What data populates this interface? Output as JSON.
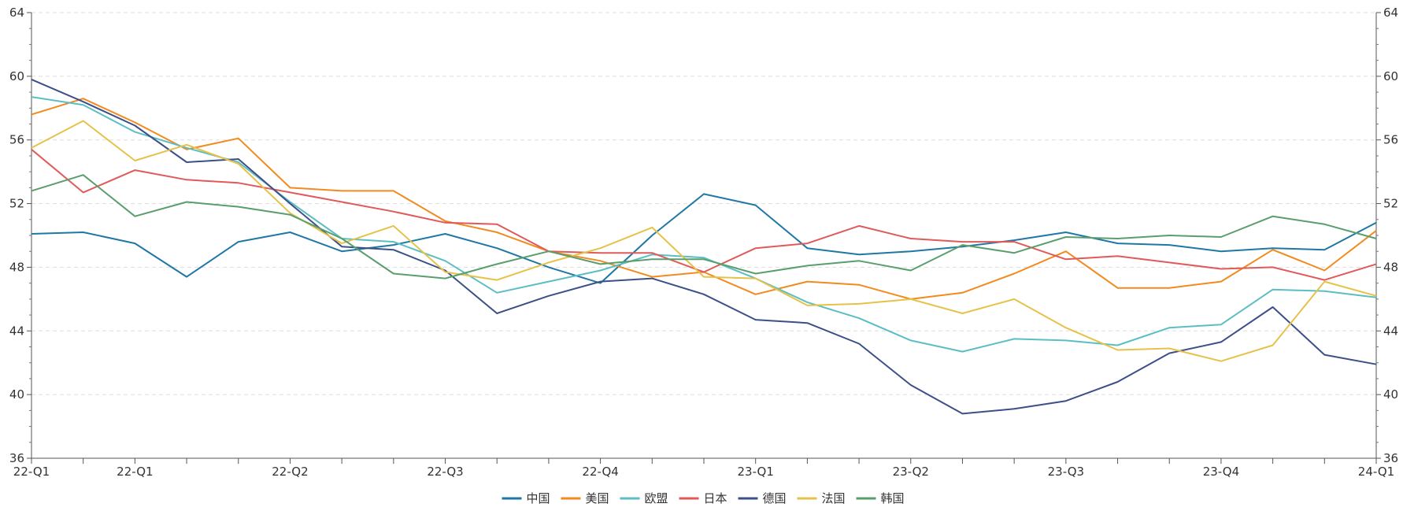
{
  "chart_data": {
    "type": "line",
    "title": "",
    "xlabel": "",
    "ylabel": "",
    "ylim": [
      36,
      64
    ],
    "y_ticks": [
      36,
      40,
      44,
      48,
      52,
      56,
      60,
      64
    ],
    "x_tick_labels": [
      "22-Q1",
      "22-Q1",
      "22-Q2",
      "22-Q3",
      "22-Q4",
      "23-Q1",
      "23-Q2",
      "23-Q3",
      "23-Q4",
      "24-Q1"
    ],
    "grid": "horizontal-dashed",
    "legend_position": "bottom-center",
    "point_count": 27,
    "series": [
      {
        "name": "中国",
        "color": "#1f77a6",
        "values": [
          50.1,
          50.2,
          49.5,
          47.4,
          49.6,
          50.2,
          49.0,
          49.4,
          50.1,
          49.2,
          48.0,
          47.0,
          50.0,
          52.6,
          51.9,
          49.2,
          48.8,
          49.0,
          49.3,
          49.7,
          50.2,
          49.5,
          49.4,
          49.0,
          49.2,
          49.1,
          50.8
        ]
      },
      {
        "name": "美国",
        "color": "#f28a1e",
        "values": [
          57.6,
          58.6,
          57.1,
          55.4,
          56.1,
          53.0,
          52.8,
          52.8,
          50.9,
          50.2,
          49.0,
          48.4,
          47.4,
          47.7,
          46.3,
          47.1,
          46.9,
          46.0,
          46.4,
          47.6,
          49.0,
          46.7,
          46.7,
          47.1,
          49.1,
          47.8,
          50.3
        ]
      },
      {
        "name": "欧盟",
        "color": "#5bbec4",
        "values": [
          58.7,
          58.2,
          56.5,
          55.5,
          54.6,
          52.1,
          49.8,
          49.6,
          48.4,
          46.4,
          47.1,
          47.8,
          48.8,
          48.6,
          47.3,
          45.8,
          44.8,
          43.4,
          42.7,
          43.5,
          43.4,
          43.1,
          44.2,
          44.4,
          46.6,
          46.5,
          46.1
        ]
      },
      {
        "name": "日本",
        "color": "#e05a5a",
        "values": [
          55.4,
          52.7,
          54.1,
          53.5,
          53.3,
          52.7,
          52.1,
          51.5,
          50.8,
          50.7,
          49.0,
          48.9,
          48.9,
          47.7,
          49.2,
          49.5,
          50.6,
          49.8,
          49.6,
          49.6,
          48.5,
          48.7,
          48.3,
          47.9,
          48.0,
          47.2,
          48.2
        ]
      },
      {
        "name": "德国",
        "color": "#3c5088",
        "values": [
          59.8,
          58.4,
          56.9,
          54.6,
          54.8,
          52.0,
          49.3,
          49.1,
          47.8,
          45.1,
          46.2,
          47.1,
          47.3,
          46.3,
          44.7,
          44.5,
          43.2,
          40.6,
          38.8,
          39.1,
          39.6,
          40.8,
          42.6,
          43.3,
          45.5,
          42.5,
          41.9
        ]
      },
      {
        "name": "法国",
        "color": "#e6c24a",
        "values": [
          55.5,
          57.2,
          54.7,
          55.7,
          54.5,
          51.4,
          49.5,
          50.6,
          47.7,
          47.2,
          48.3,
          49.2,
          50.5,
          47.4,
          47.3,
          45.6,
          45.7,
          46.0,
          45.1,
          46.0,
          44.2,
          42.8,
          42.9,
          42.1,
          43.1,
          47.1,
          46.2
        ]
      },
      {
        "name": "韩国",
        "color": "#5a9e6e",
        "values": [
          52.8,
          53.8,
          51.2,
          52.1,
          51.8,
          51.3,
          49.8,
          47.6,
          47.3,
          48.2,
          49.0,
          48.2,
          48.5,
          48.5,
          47.6,
          48.1,
          48.4,
          47.8,
          49.4,
          48.9,
          49.9,
          49.8,
          50.0,
          49.9,
          51.2,
          50.7,
          49.8
        ]
      }
    ]
  }
}
